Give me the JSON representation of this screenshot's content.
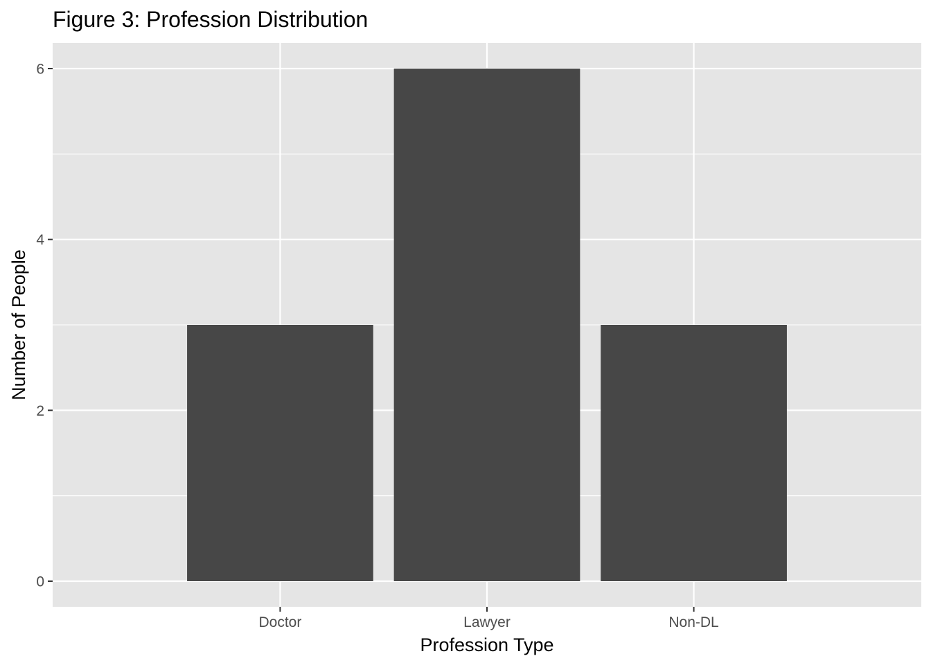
{
  "chart_data": {
    "type": "bar",
    "title": "Figure 3: Profession Distribution",
    "xlabel": "Profession Type",
    "ylabel": "Number of People",
    "categories": [
      "Doctor",
      "Lawyer",
      "Non-DL"
    ],
    "values": [
      3,
      6,
      3
    ],
    "ylim": [
      -0.3,
      6.3
    ],
    "yticks": [
      0,
      2,
      4,
      6
    ],
    "ytick_labels": [
      "0",
      "2",
      "4",
      "6"
    ],
    "grid": true,
    "colors": {
      "panel_background": "#e5e5e5",
      "gridline": "#ffffff",
      "bar_fill": "#474747",
      "tick_text": "#4d4d4d",
      "axis_text": "#000000"
    }
  }
}
